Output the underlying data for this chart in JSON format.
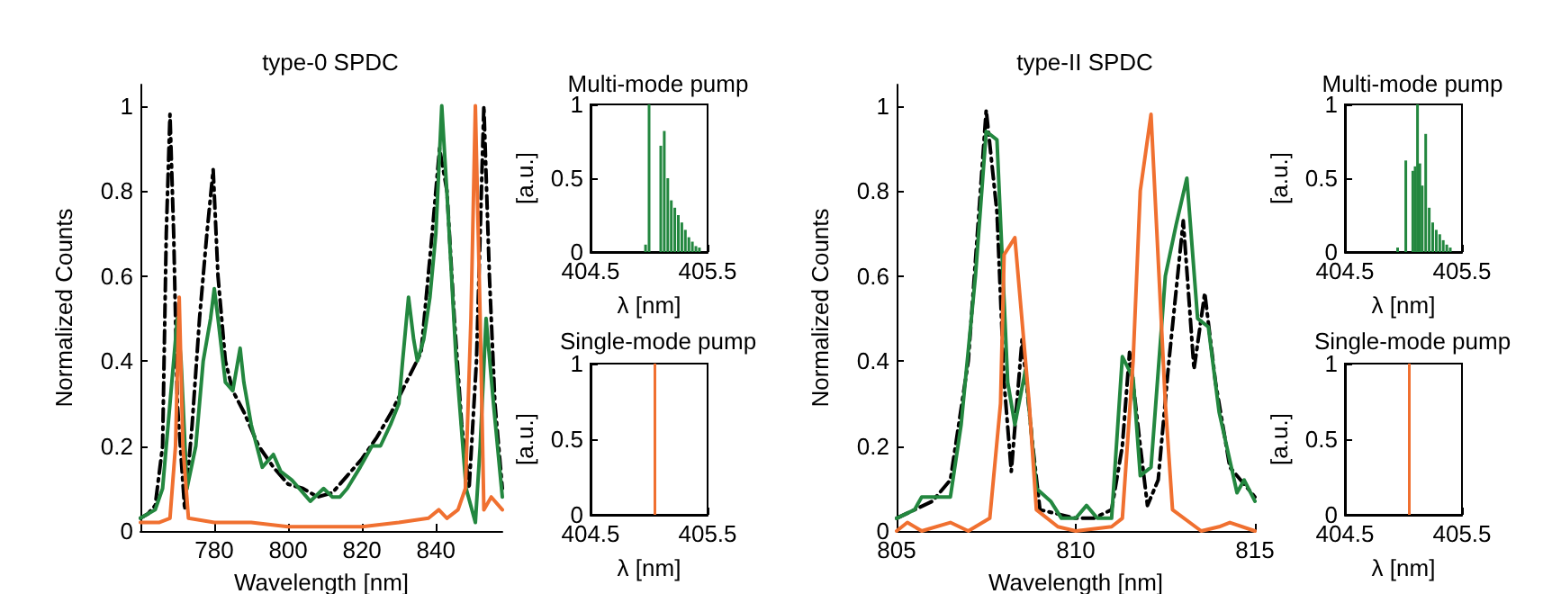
{
  "chart_data": [
    {
      "type": "line",
      "title": "type-0 SPDC",
      "xlabel": "Wavelength [nm]",
      "ylabel": "Normalized Counts",
      "xlim": [
        760,
        858
      ],
      "xticks": [
        780,
        800,
        820,
        840
      ],
      "ylim": [
        0,
        1.05
      ],
      "yticks": [
        0,
        0.2,
        0.4,
        0.6,
        0.8,
        1
      ],
      "series": [
        {
          "color": "#000000",
          "line_style": "dashed",
          "x": [
            760,
            762,
            764,
            766,
            767,
            768,
            769,
            770,
            772,
            774,
            776,
            778,
            779.7,
            781,
            783,
            785,
            788,
            792,
            796,
            800,
            804,
            808,
            812,
            816,
            820,
            824,
            828,
            832,
            836,
            839,
            841,
            843,
            845,
            847,
            849,
            851,
            853,
            854.5,
            856,
            858
          ],
          "values": [
            0.03,
            0.04,
            0.06,
            0.2,
            0.7,
            0.98,
            0.7,
            0.3,
            0.05,
            0.25,
            0.5,
            0.7,
            0.85,
            0.6,
            0.4,
            0.33,
            0.28,
            0.2,
            0.15,
            0.11,
            0.1,
            0.08,
            0.09,
            0.13,
            0.17,
            0.22,
            0.28,
            0.35,
            0.42,
            0.7,
            0.9,
            0.8,
            0.5,
            0.25,
            0.1,
            0.4,
            1.0,
            0.6,
            0.3,
            0.1
          ]
        },
        {
          "color": "#23873f",
          "line_style": "solid",
          "x": [
            760,
            762,
            764,
            766,
            768,
            770,
            771,
            772.6,
            775,
            777,
            779,
            780,
            781,
            783,
            785,
            787,
            788,
            790,
            791.5,
            793,
            796,
            798,
            801,
            803,
            806,
            809.6,
            812,
            814,
            816,
            819.5,
            822.7,
            825,
            827.7,
            830,
            831,
            832.6,
            834,
            835,
            836.7,
            838.4,
            840,
            841.6,
            843.3,
            845.5,
            848.2,
            850.7,
            852,
            853.6,
            855.6,
            858
          ],
          "values": [
            0.03,
            0.04,
            0.05,
            0.1,
            0.3,
            0.5,
            0.4,
            0.1,
            0.2,
            0.4,
            0.5,
            0.57,
            0.5,
            0.35,
            0.33,
            0.43,
            0.35,
            0.25,
            0.2,
            0.15,
            0.18,
            0.14,
            0.12,
            0.1,
            0.07,
            0.1,
            0.08,
            0.08,
            0.1,
            0.15,
            0.2,
            0.2,
            0.25,
            0.3,
            0.4,
            0.55,
            0.45,
            0.4,
            0.45,
            0.55,
            0.7,
            1.0,
            0.75,
            0.4,
            0.1,
            0.02,
            0.2,
            0.5,
            0.3,
            0.08
          ]
        },
        {
          "color": "#f07030",
          "line_style": "solid",
          "x": [
            760,
            765,
            768,
            769.5,
            770.5,
            771.5,
            773,
            780,
            790,
            800,
            810,
            820,
            830,
            838,
            840.8,
            843,
            846,
            848,
            849.5,
            850.7,
            852,
            853,
            855,
            858
          ],
          "values": [
            0.02,
            0.02,
            0.03,
            0.2,
            0.55,
            0.2,
            0.03,
            0.02,
            0.02,
            0.01,
            0.01,
            0.01,
            0.02,
            0.03,
            0.05,
            0.03,
            0.05,
            0.1,
            0.5,
            1.0,
            0.5,
            0.05,
            0.08,
            0.05
          ]
        }
      ]
    },
    {
      "type": "bar",
      "title": "Multi-mode pump",
      "xlabel": "λ [nm]",
      "ylabel": "[a.u.]",
      "xlim": [
        404.5,
        405.5
      ],
      "xticks": [
        404.5,
        405.5
      ],
      "ylim": [
        0,
        1
      ],
      "yticks": [
        0,
        0.5,
        1
      ],
      "series": [
        {
          "color": "#23873f",
          "x": [
            404.97,
            405.0,
            405.1,
            405.13,
            405.16,
            405.19,
            405.22,
            405.25,
            405.28,
            405.31,
            405.34,
            405.37,
            405.4,
            405.43
          ],
          "values": [
            0.05,
            1.0,
            0.72,
            0.82,
            0.5,
            0.35,
            0.3,
            0.25,
            0.2,
            0.15,
            0.1,
            0.07,
            0.04,
            0.03
          ]
        }
      ]
    },
    {
      "type": "bar",
      "title": "Single-mode pump",
      "xlabel": "λ [nm]",
      "ylabel": "[a.u.]",
      "xlim": [
        404.5,
        405.5
      ],
      "xticks": [
        404.5,
        405.5
      ],
      "ylim": [
        0,
        1
      ],
      "yticks": [
        0,
        0.5,
        1
      ],
      "series": [
        {
          "color": "#f07030",
          "x": [
            405.05
          ],
          "values": [
            1
          ]
        }
      ]
    },
    {
      "type": "line",
      "title": "type-II SPDC",
      "xlabel": "Wavelength [nm]",
      "ylabel": "Normalized Counts",
      "xlim": [
        805,
        815
      ],
      "xticks": [
        805,
        810,
        815
      ],
      "ylim": [
        0,
        1.05
      ],
      "yticks": [
        0,
        0.2,
        0.4,
        0.6,
        0.8,
        1
      ],
      "series": [
        {
          "color": "#000000",
          "line_style": "dashed",
          "x": [
            805,
            806,
            806.5,
            807,
            807.5,
            807.8,
            808,
            808.2,
            808.5,
            808.8,
            809,
            809.5,
            810,
            810.5,
            811,
            811.3,
            811.5,
            811.8,
            812,
            812.3,
            812.6,
            813,
            813.3,
            813.6,
            813.9,
            814.3,
            815
          ],
          "values": [
            0.03,
            0.07,
            0.12,
            0.4,
            0.99,
            0.75,
            0.35,
            0.14,
            0.45,
            0.2,
            0.05,
            0.04,
            0.03,
            0.03,
            0.05,
            0.2,
            0.42,
            0.2,
            0.06,
            0.12,
            0.4,
            0.73,
            0.38,
            0.56,
            0.35,
            0.15,
            0.08
          ]
        },
        {
          "color": "#23873f",
          "line_style": "solid",
          "x": [
            805,
            805.5,
            805.7,
            806.5,
            806.8,
            807.2,
            807.5,
            807.8,
            808.1,
            808.3,
            808.6,
            808.9,
            809.3,
            809.6,
            810,
            810.3,
            810.6,
            811,
            811.3,
            811.6,
            811.8,
            812.1,
            812.5,
            812.8,
            813.1,
            813.4,
            813.7,
            814,
            814.5,
            814.7,
            815
          ],
          "values": [
            0.03,
            0.05,
            0.08,
            0.08,
            0.25,
            0.6,
            0.94,
            0.92,
            0.35,
            0.25,
            0.38,
            0.1,
            0.07,
            0.03,
            0.03,
            0.06,
            0.03,
            0.03,
            0.41,
            0.36,
            0.13,
            0.15,
            0.6,
            0.72,
            0.83,
            0.5,
            0.48,
            0.28,
            0.09,
            0.12,
            0.07
          ]
        },
        {
          "color": "#f07030",
          "line_style": "solid",
          "x": [
            805,
            805.3,
            805.7,
            806.5,
            807,
            807.6,
            807.9,
            808,
            808.3,
            808.7,
            808.9,
            809.5,
            810,
            811,
            811.3,
            811.6,
            811.8,
            812.1,
            812.5,
            812.7,
            813.5,
            814,
            814.3,
            815
          ],
          "values": [
            0.0,
            0.02,
            0.0,
            0.02,
            0.0,
            0.03,
            0.3,
            0.65,
            0.69,
            0.3,
            0.05,
            0.01,
            0.0,
            0.01,
            0.03,
            0.4,
            0.8,
            0.98,
            0.3,
            0.05,
            0.0,
            0.01,
            0.02,
            0.0
          ]
        }
      ]
    },
    {
      "type": "bar",
      "title": "Multi-mode pump",
      "xlabel": "λ [nm]",
      "ylabel": "[a.u.]",
      "xlim": [
        404.5,
        405.5
      ],
      "xticks": [
        404.5,
        405.5
      ],
      "ylim": [
        0,
        1
      ],
      "yticks": [
        0,
        0.5,
        1
      ],
      "series": [
        {
          "color": "#23873f",
          "x": [
            404.95,
            405.02,
            405.08,
            405.1,
            405.12,
            405.14,
            405.16,
            405.19,
            405.22,
            405.25,
            405.28,
            405.31,
            405.34,
            405.37,
            405.4
          ],
          "values": [
            0.03,
            0.62,
            0.55,
            0.58,
            1.0,
            0.6,
            0.45,
            0.8,
            0.3,
            0.2,
            0.15,
            0.12,
            0.08,
            0.05,
            0.03
          ]
        }
      ]
    },
    {
      "type": "bar",
      "title": "Single-mode pump",
      "xlabel": "λ [nm]",
      "ylabel": "[a.u.]",
      "xlim": [
        404.5,
        405.5
      ],
      "xticks": [
        404.5,
        405.5
      ],
      "ylim": [
        0,
        1
      ],
      "yticks": [
        0,
        0.5,
        1
      ],
      "series": [
        {
          "color": "#f07030",
          "x": [
            405.05
          ],
          "values": [
            1
          ]
        }
      ]
    }
  ]
}
